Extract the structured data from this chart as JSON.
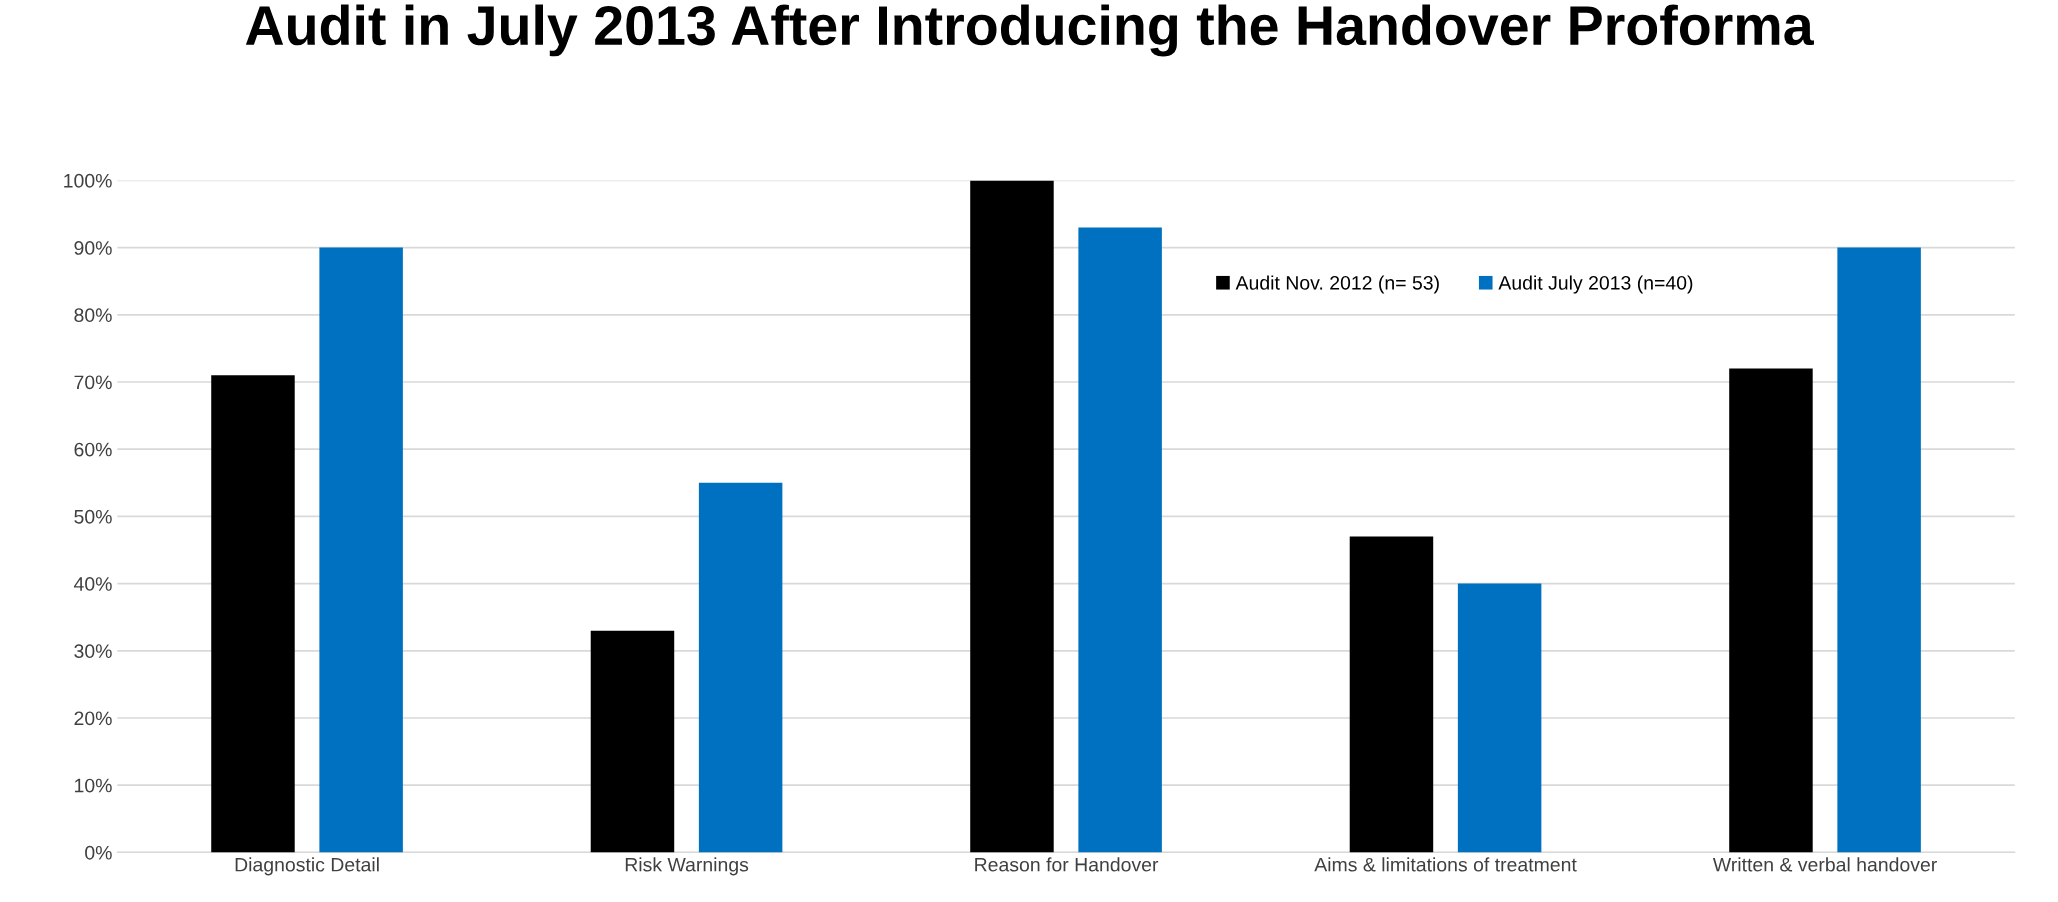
{
  "chart_data": {
    "type": "bar",
    "title": "Audit in July 2013 After Introducing the Handover Proforma",
    "categories": [
      "Diagnostic Detail",
      "Risk Warnings",
      "Reason for Handover",
      "Aims & limitations of treatment",
      "Written & verbal handover"
    ],
    "series": [
      {
        "name": "Audit Nov. 2012 (n= 53)",
        "color": "#000000",
        "values": [
          71,
          33,
          100,
          47,
          72
        ]
      },
      {
        "name": "Audit July 2013 (n=40)",
        "color": "#0070c0",
        "values": [
          90,
          55,
          93,
          40,
          90
        ]
      }
    ],
    "ylim": [
      0,
      100
    ],
    "yticks": [
      {
        "value": 0,
        "label": "0%"
      },
      {
        "value": 10,
        "label": "10%"
      },
      {
        "value": 20,
        "label": "20%"
      },
      {
        "value": 30,
        "label": "30%"
      },
      {
        "value": 40,
        "label": "40%"
      },
      {
        "value": 50,
        "label": "50%"
      },
      {
        "value": 60,
        "label": "60%"
      },
      {
        "value": 70,
        "label": "70%"
      },
      {
        "value": 80,
        "label": "80%"
      },
      {
        "value": 90,
        "label": "90%"
      },
      {
        "value": 100,
        "label": "100%"
      }
    ],
    "grid": "y",
    "legend": "top right"
  }
}
